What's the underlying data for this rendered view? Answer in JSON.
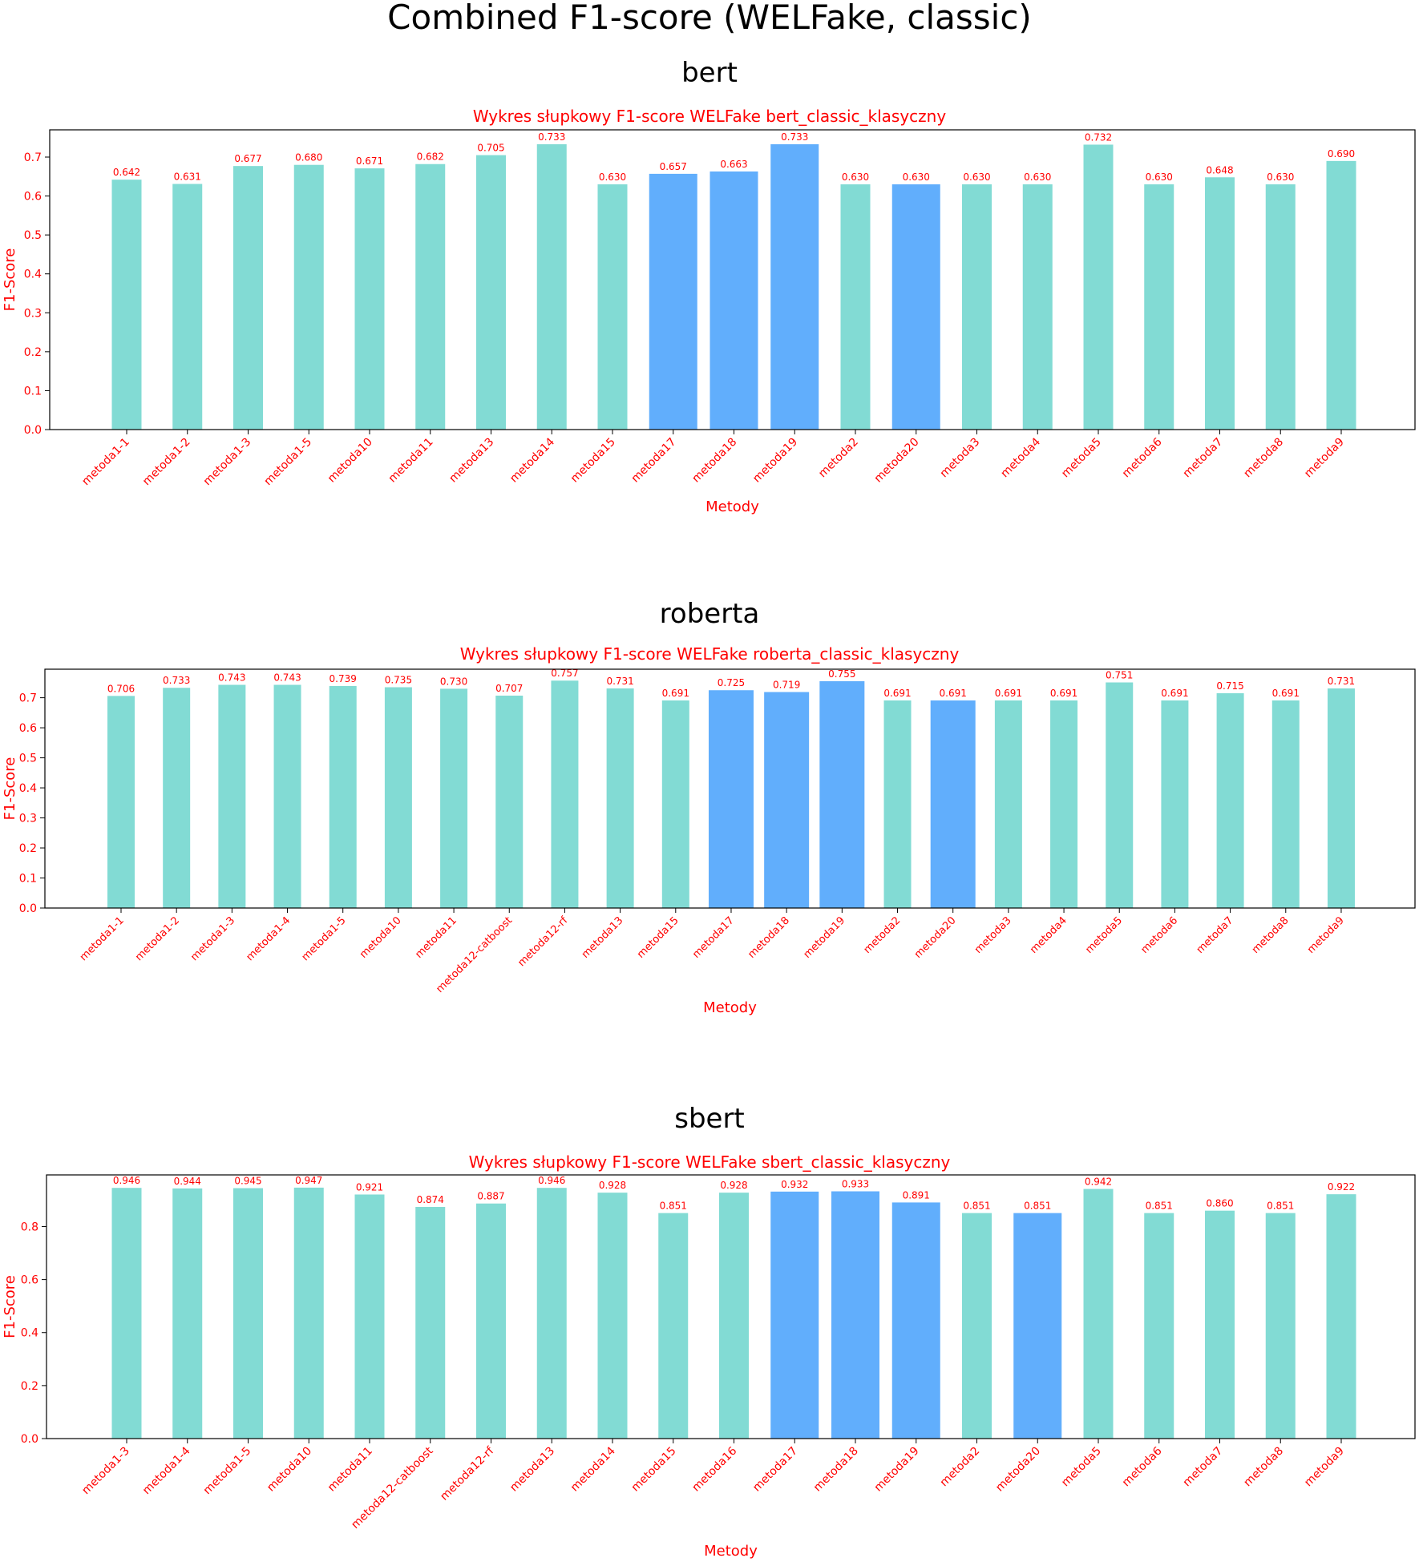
{
  "title": "Combined F1-score (WELFake, classic)",
  "colors": {
    "text": "#ff0000",
    "base": "#82dbd4",
    "highlight": "#61aefc",
    "axis": "#000000"
  },
  "chart_data": [
    {
      "type": "bar",
      "panel_title": "bert",
      "title": "Wykres słupkowy F1-score WELFake bert_classic_klasyczny",
      "xlabel": "Metody",
      "ylabel": "F1-Score",
      "ylim": [
        0,
        0.77
      ],
      "yticks": [
        0.0,
        0.1,
        0.2,
        0.3,
        0.4,
        0.5,
        0.6,
        0.7
      ],
      "ytick_labels": [
        "0.0",
        "0.1",
        "0.2",
        "0.3",
        "0.4",
        "0.5",
        "0.6",
        "0.7"
      ],
      "categories": [
        "metoda1-1",
        "metoda1-2",
        "metoda1-3",
        "metoda1-5",
        "metoda10",
        "metoda11",
        "metoda13",
        "metoda14",
        "metoda15",
        "metoda17",
        "metoda18",
        "metoda19",
        "metoda2",
        "metoda20",
        "metoda3",
        "metoda4",
        "metoda5",
        "metoda6",
        "metoda7",
        "metoda8",
        "metoda9"
      ],
      "values": [
        0.642,
        0.631,
        0.677,
        0.68,
        0.671,
        0.682,
        0.705,
        0.733,
        0.63,
        0.657,
        0.663,
        0.733,
        0.63,
        0.63,
        0.63,
        0.63,
        0.732,
        0.63,
        0.648,
        0.63,
        0.69
      ],
      "labels": [
        "0.642",
        "0.631",
        "0.677",
        "0.680",
        "0.671",
        "0.682",
        "0.705",
        "0.733",
        "0.630",
        "0.657",
        "0.663",
        "0.733",
        "0.630",
        "0.630",
        "0.630",
        "0.630",
        "0.732",
        "0.630",
        "0.648",
        "0.630",
        "0.690"
      ],
      "highlighted": [
        "metoda17",
        "metoda18",
        "metoda19",
        "metoda20"
      ],
      "grid": false,
      "legend": "none"
    },
    {
      "type": "bar",
      "panel_title": "roberta",
      "title": "Wykres słupkowy F1-score WELFake roberta_classic_klasyczny",
      "xlabel": "Metody",
      "ylabel": "F1-Score",
      "ylim": [
        0,
        0.795
      ],
      "yticks": [
        0.0,
        0.1,
        0.2,
        0.3,
        0.4,
        0.5,
        0.6,
        0.7
      ],
      "ytick_labels": [
        "0.0",
        "0.1",
        "0.2",
        "0.3",
        "0.4",
        "0.5",
        "0.6",
        "0.7"
      ],
      "categories": [
        "metoda1-1",
        "metoda1-2",
        "metoda1-3",
        "metoda1-4",
        "metoda1-5",
        "metoda10",
        "metoda11",
        "metoda12-catboost",
        "metoda12-rf",
        "metoda13",
        "metoda15",
        "metoda17",
        "metoda18",
        "metoda19",
        "metoda2",
        "metoda20",
        "metoda3",
        "metoda4",
        "metoda5",
        "metoda6",
        "metoda7",
        "metoda8",
        "metoda9"
      ],
      "values": [
        0.706,
        0.733,
        0.743,
        0.743,
        0.739,
        0.735,
        0.73,
        0.707,
        0.757,
        0.731,
        0.691,
        0.725,
        0.719,
        0.755,
        0.691,
        0.691,
        0.691,
        0.691,
        0.751,
        0.691,
        0.715,
        0.691,
        0.731
      ],
      "labels": [
        "0.706",
        "0.733",
        "0.743",
        "0.743",
        "0.739",
        "0.735",
        "0.730",
        "0.707",
        "0.757",
        "0.731",
        "0.691",
        "0.725",
        "0.719",
        "0.755",
        "0.691",
        "0.691",
        "0.691",
        "0.691",
        "0.751",
        "0.691",
        "0.715",
        "0.691",
        "0.731"
      ],
      "highlighted": [
        "metoda17",
        "metoda18",
        "metoda19",
        "metoda20"
      ],
      "grid": false,
      "legend": "none"
    },
    {
      "type": "bar",
      "panel_title": "sbert",
      "title": "Wykres słupkowy F1-score WELFake sbert_classic_klasyczny",
      "xlabel": "Metody",
      "ylabel": "F1-Score",
      "ylim": [
        0,
        0.995
      ],
      "yticks": [
        0.0,
        0.2,
        0.4,
        0.6,
        0.8
      ],
      "ytick_labels": [
        "0.0",
        "0.2",
        "0.4",
        "0.6",
        "0.8"
      ],
      "categories": [
        "metoda1-3",
        "metoda1-4",
        "metoda1-5",
        "metoda10",
        "metoda11",
        "metoda12-catboost",
        "metoda12-rf",
        "metoda13",
        "metoda14",
        "metoda15",
        "metoda16",
        "metoda17",
        "metoda18",
        "metoda19",
        "metoda2",
        "metoda20",
        "metoda5",
        "metoda6",
        "metoda7",
        "metoda8",
        "metoda9"
      ],
      "values": [
        0.946,
        0.944,
        0.945,
        0.947,
        0.921,
        0.874,
        0.887,
        0.946,
        0.928,
        0.851,
        0.928,
        0.932,
        0.933,
        0.891,
        0.851,
        0.851,
        0.942,
        0.851,
        0.86,
        0.851,
        0.922
      ],
      "labels": [
        "0.946",
        "0.944",
        "0.945",
        "0.947",
        "0.921",
        "0.874",
        "0.887",
        "0.946",
        "0.928",
        "0.851",
        "0.928",
        "0.932",
        "0.933",
        "0.891",
        "0.851",
        "0.851",
        "0.942",
        "0.851",
        "0.860",
        "0.851",
        "0.922"
      ],
      "highlighted": [
        "metoda17",
        "metoda18",
        "metoda19",
        "metoda20"
      ],
      "grid": false,
      "legend": "none"
    }
  ]
}
